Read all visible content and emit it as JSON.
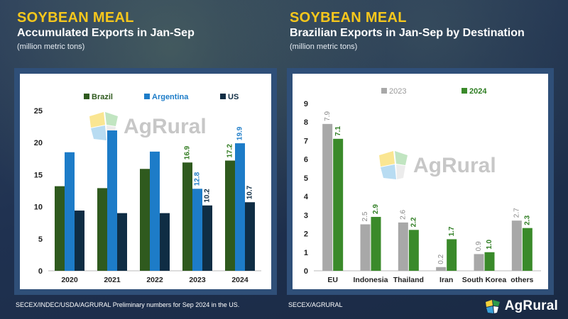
{
  "left": {
    "title": "SOYBEAN MEAL",
    "subtitle": "Accumulated Exports in Jan-Sep",
    "units": "(million metric tons)",
    "footnote": "SECEX/INDEC/USDA/AGRURAL  Preliminary numbers for Sep 2024 in the US."
  },
  "right": {
    "title": "SOYBEAN MEAL",
    "subtitle": "Brazilian Exports in Jan-Sep by Destination",
    "units": "(million metric tons)",
    "footnote": "SECEX/AGRURAL"
  },
  "brand": {
    "name": "AgRural",
    "icon": "agrural-logo-icon"
  },
  "chart_data": [
    {
      "type": "bar",
      "categories": [
        "2020",
        "2021",
        "2022",
        "2023",
        "2024"
      ],
      "series": [
        {
          "name": "Brazil",
          "color": "#2f5a1e",
          "values": [
            13.2,
            12.9,
            15.9,
            16.9,
            17.2
          ],
          "labeled": [
            false,
            false,
            false,
            true,
            true
          ]
        },
        {
          "name": "Argentina",
          "color": "#1d7cc8",
          "values": [
            18.5,
            21.9,
            18.6,
            12.8,
            19.9
          ],
          "labeled": [
            false,
            false,
            false,
            true,
            true
          ]
        },
        {
          "name": "US",
          "color": "#0f2d44",
          "values": [
            9.4,
            9.0,
            9.0,
            10.2,
            10.7
          ],
          "labeled": [
            false,
            false,
            false,
            true,
            true
          ]
        }
      ],
      "ylim": [
        0,
        25
      ],
      "yticks": [
        0,
        5,
        10,
        15,
        20,
        25
      ],
      "legend": "top",
      "grid": false,
      "watermark": "AgRural"
    },
    {
      "type": "bar",
      "categories": [
        "EU",
        "Indonesia",
        "Thailand",
        "Iran",
        "South Korea",
        "others"
      ],
      "series": [
        {
          "name": "2023",
          "color": "#a8a8a8",
          "values": [
            7.9,
            2.5,
            2.6,
            0.2,
            0.9,
            2.7
          ]
        },
        {
          "name": "2024",
          "color": "#3a8a2a",
          "values": [
            7.1,
            2.9,
            2.2,
            1.7,
            1.0,
            2.3
          ]
        }
      ],
      "ylim": [
        0,
        9
      ],
      "yticks": [
        0,
        1,
        2,
        3,
        4,
        5,
        6,
        7,
        8,
        9
      ],
      "legend": "top",
      "grid": false,
      "watermark": "AgRural"
    }
  ]
}
